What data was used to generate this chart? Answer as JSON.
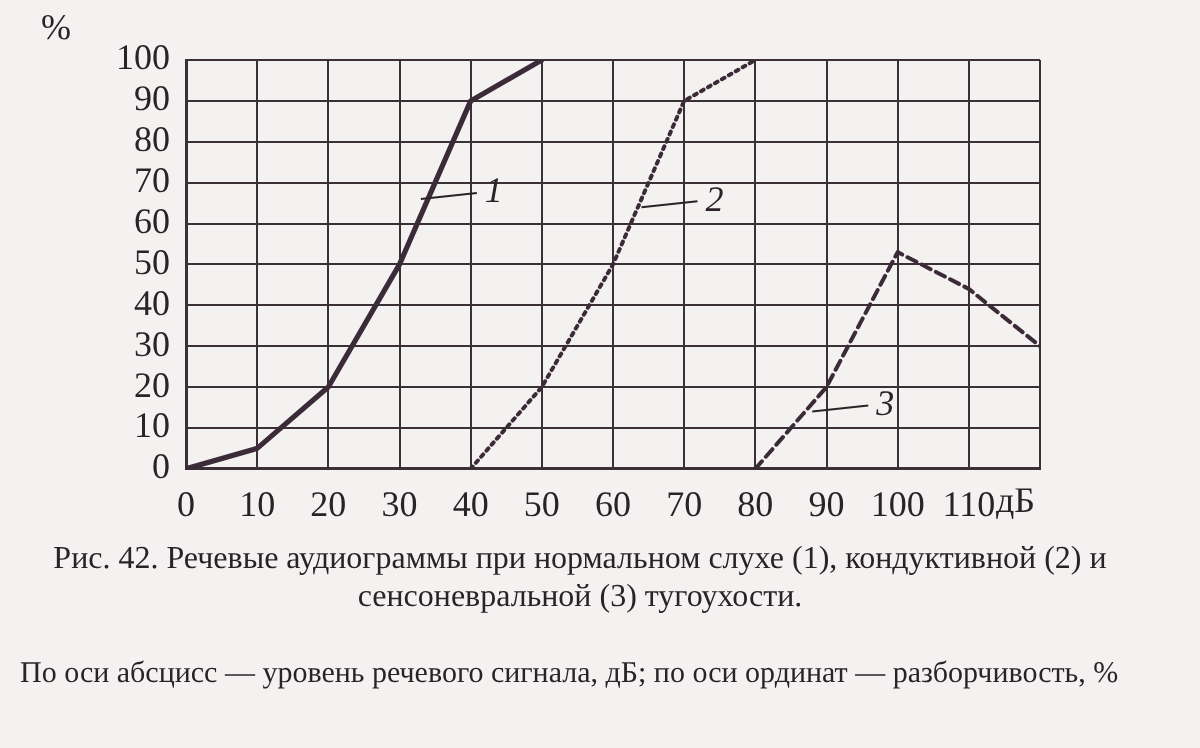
{
  "chart_data": {
    "type": "line",
    "xlabel": "дБ",
    "ylabel": "%",
    "xlim": [
      0,
      120
    ],
    "xticks": [
      0,
      10,
      20,
      30,
      40,
      50,
      60,
      70,
      80,
      90,
      100,
      110,
      {
        "value": 120,
        "label": null
      }
    ],
    "ylim": [
      0,
      100
    ],
    "yticks": [
      0,
      10,
      20,
      30,
      40,
      50,
      60,
      70,
      80,
      90,
      100
    ],
    "grid": true,
    "legend": false,
    "marker": "none",
    "series": [
      {
        "color": "#3b2a38",
        "line_style": "solid",
        "x": [
          0,
          10,
          20,
          30,
          40,
          50
        ],
        "values": [
          0,
          5,
          20,
          50,
          90,
          100
        ]
      },
      {
        "color": "#3b2a38",
        "line_style": "dotted",
        "x": [
          40,
          50,
          60,
          70,
          80
        ],
        "values": [
          0,
          20,
          50,
          90,
          100
        ]
      },
      {
        "color": "#3b2a38",
        "line_style": "dashed",
        "x": [
          80,
          90,
          100,
          110,
          120
        ],
        "values": [
          0,
          20,
          53,
          44,
          30
        ]
      }
    ],
    "annotations": [
      {
        "text": "1",
        "x": 33,
        "y": 66
      },
      {
        "text": "2",
        "x": 64,
        "y": 64
      },
      {
        "text": "3",
        "x": 88,
        "y": 14
      },
      "Рис. 42. Речевые аудиограммы при нормальном слухе (1), кондуктивной (2) и сенсоневральной (3) тугоухости.",
      "По оси абсцисс — уровень речевого сигнала, дБ; по оси ординат — разборчивость, %"
    ]
  }
}
